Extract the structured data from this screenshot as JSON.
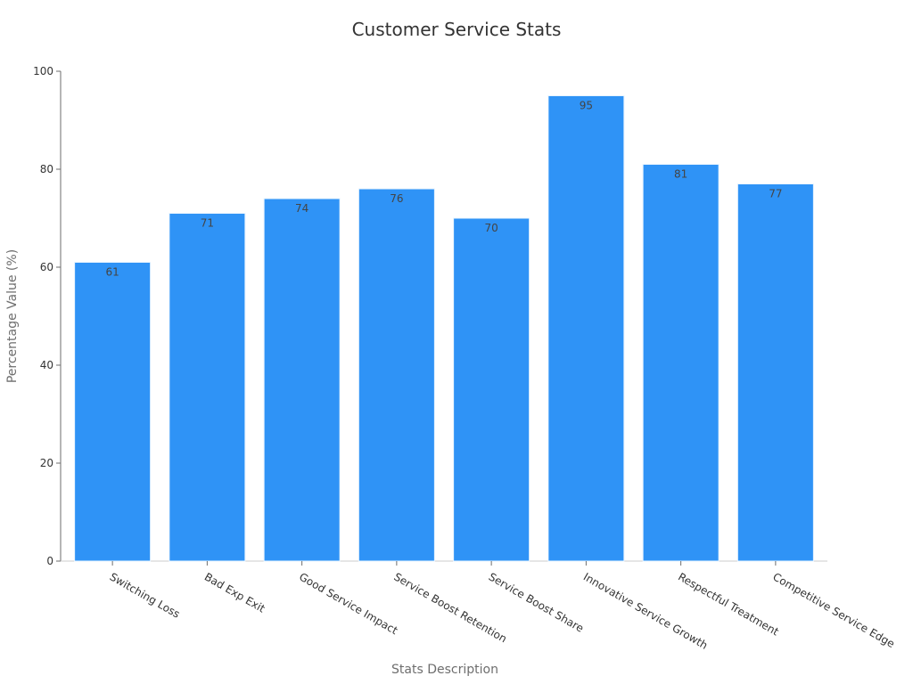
{
  "chart_data": {
    "type": "bar",
    "title": "Customer Service Stats",
    "xlabel": "Stats Description",
    "ylabel": "Percentage Value (%)",
    "categories": [
      "Switching Loss",
      "Bad Exp Exit",
      "Good Service Impact",
      "Service Boost Retention",
      "Service Boost Share",
      "Innovative Service Growth",
      "Respectful Treatment",
      "Competitive Service Edge"
    ],
    "values": [
      61,
      71,
      74,
      76,
      70,
      95,
      81,
      77
    ],
    "ylim": [
      0,
      100
    ],
    "yticks": [
      0,
      20,
      40,
      60,
      80,
      100
    ],
    "bar_color": "#2f93f6",
    "data_labels": true,
    "grid": false,
    "legend": false
  }
}
